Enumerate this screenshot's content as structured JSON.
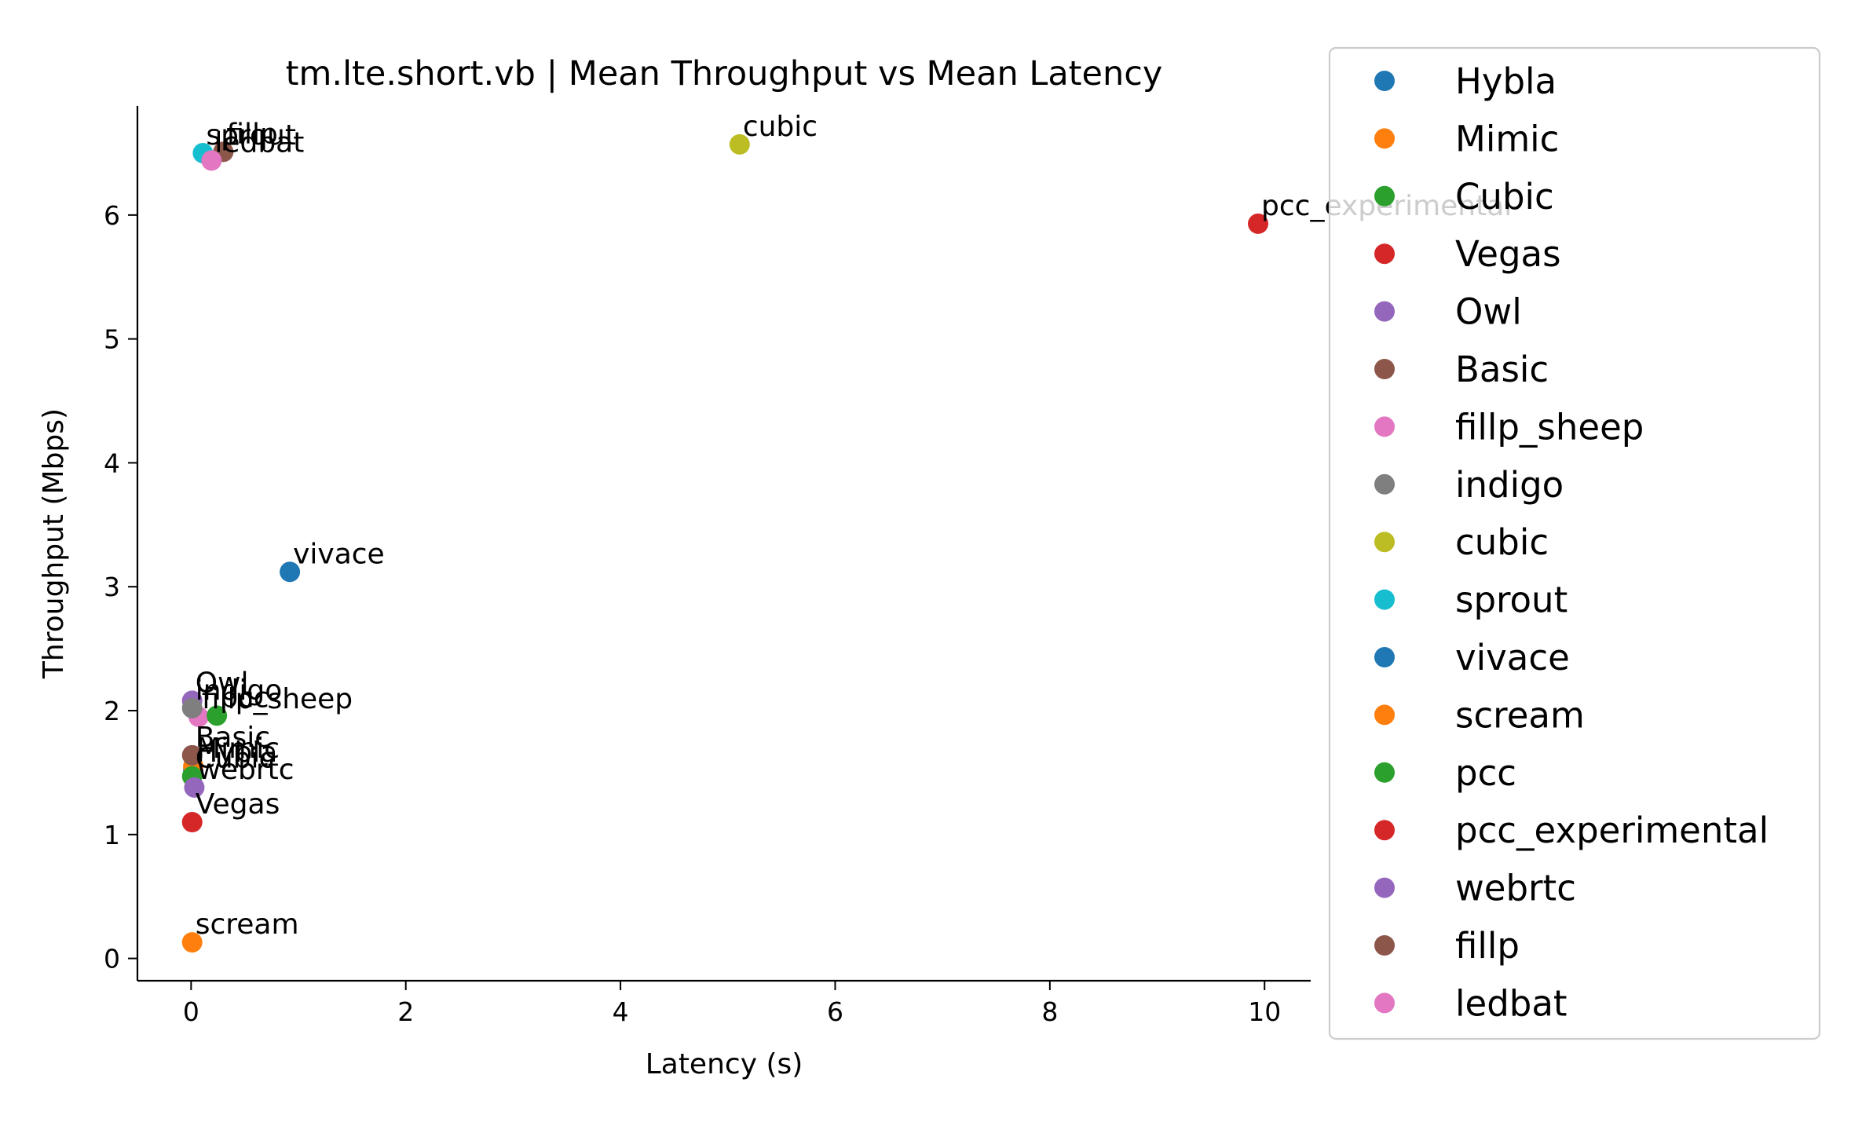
{
  "chart_data": {
    "type": "scatter",
    "title": "tm.lte.short.vb | Mean Throughput vs Mean Latency",
    "xlabel": "Latency (s)",
    "ylabel": "Throughput (Mbps)",
    "xlim": [
      -0.5,
      10.43
    ],
    "ylim": [
      -0.18,
      6.88
    ],
    "xticks": [
      0,
      2,
      4,
      6,
      8,
      10
    ],
    "yticks": [
      0,
      1,
      2,
      3,
      4,
      5,
      6
    ],
    "grid": false,
    "legend_position": "outside-right",
    "series": [
      {
        "name": "Hybla",
        "x": 0.02,
        "y": 1.52,
        "color": "#1f77b4",
        "label": "Hybla"
      },
      {
        "name": "Mimic",
        "x": 0.02,
        "y": 1.55,
        "color": "#ff7f0e",
        "label": "Mimic"
      },
      {
        "name": "Cubic",
        "x": 0.01,
        "y": 1.47,
        "color": "#2ca02c",
        "label": "Cubic"
      },
      {
        "name": "Vegas",
        "x": 0.01,
        "y": 1.1,
        "color": "#d62728",
        "label": "Vegas"
      },
      {
        "name": "Owl",
        "x": 0.01,
        "y": 2.08,
        "color": "#9467bd",
        "label": "Owl"
      },
      {
        "name": "Basic",
        "x": 0.01,
        "y": 1.64,
        "color": "#8c564b",
        "label": "Basic"
      },
      {
        "name": "fillp_sheep",
        "x": 0.07,
        "y": 1.95,
        "color": "#e377c2",
        "label": "fillp_sheep"
      },
      {
        "name": "indigo",
        "x": 0.01,
        "y": 2.02,
        "color": "#7f7f7f",
        "label": "indigo"
      },
      {
        "name": "cubic",
        "x": 5.11,
        "y": 6.57,
        "color": "#bcbd22",
        "label": "cubic"
      },
      {
        "name": "sprout",
        "x": 0.11,
        "y": 6.5,
        "color": "#17becf",
        "label": "sprout"
      },
      {
        "name": "vivace",
        "x": 0.92,
        "y": 3.12,
        "color": "#1f77b4",
        "label": "vivace"
      },
      {
        "name": "scream",
        "x": 0.01,
        "y": 0.13,
        "color": "#ff7f0e",
        "label": "scream"
      },
      {
        "name": "pcc",
        "x": 0.24,
        "y": 1.96,
        "color": "#2ca02c",
        "label": "pcc"
      },
      {
        "name": "pcc_experimental",
        "x": 9.94,
        "y": 5.93,
        "color": "#d62728",
        "label": "pcc_experimental"
      },
      {
        "name": "webrtc",
        "x": 0.03,
        "y": 1.38,
        "color": "#9467bd",
        "label": "webrtc"
      },
      {
        "name": "fillp",
        "x": 0.3,
        "y": 6.51,
        "color": "#8c564b",
        "label": "fillp"
      },
      {
        "name": "ledbat",
        "x": 0.19,
        "y": 6.44,
        "color": "#e377c2",
        "label": "ledbat"
      }
    ]
  }
}
